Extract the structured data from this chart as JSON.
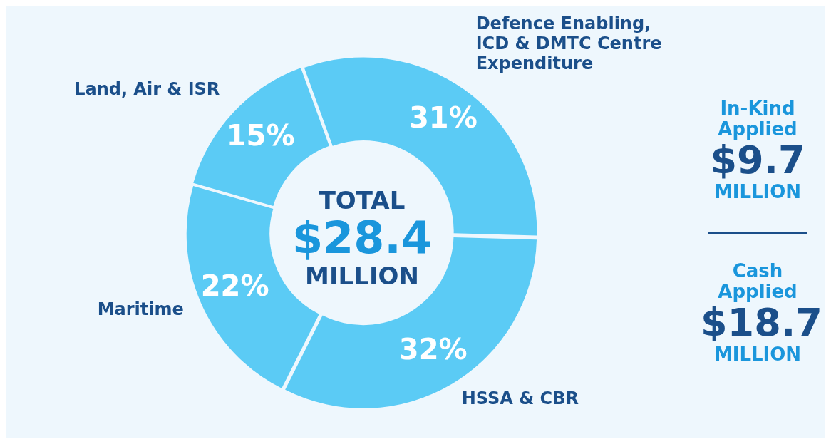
{
  "chart_data": {
    "type": "donut",
    "categories": [
      "Defence Enabling, ICD & DMTC Centre Expenditure",
      "HSSA & CBR",
      "Maritime",
      "Land, Air & ISR"
    ],
    "values": [
      31,
      32,
      22,
      15
    ],
    "colors": [
      "#5bcbf5",
      "#5bcbf5",
      "#5bcbf5",
      "#5bcbf5"
    ],
    "value_labels": [
      "31%",
      "32%",
      "22%",
      "15%"
    ],
    "legend": false,
    "annotations": [
      "TOTAL\n$28.4\nMILLION",
      "In-Kind\nApplied\n$9.7\nMILLION",
      "Cash\nApplied\n$18.7\nMILLION"
    ]
  }
}
